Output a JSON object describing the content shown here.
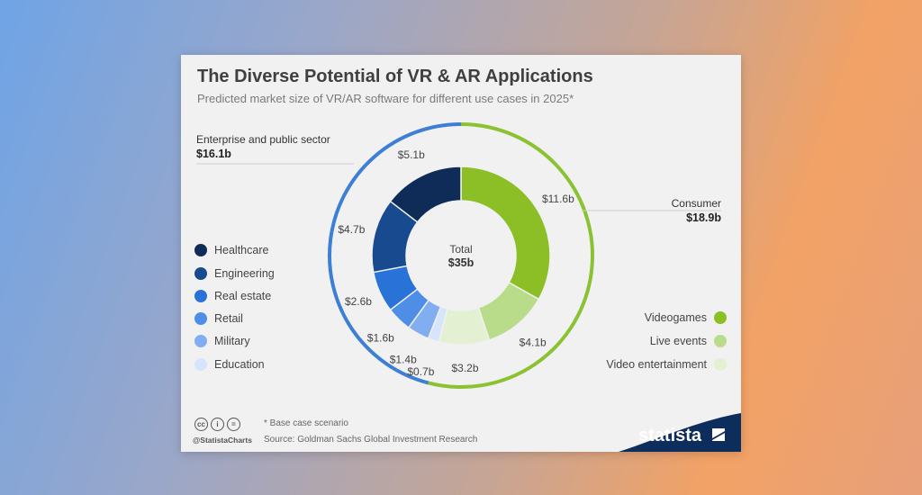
{
  "title": "The Diverse Potential of VR & AR Applications",
  "subtitle": "Predicted market size of VR/AR software for different use cases in 2025*",
  "center": {
    "label": "Total",
    "value": "$35b"
  },
  "groups": {
    "enterprise": {
      "name": "Enterprise and public sector",
      "value": "$16.1b"
    },
    "consumer": {
      "name": "Consumer",
      "value": "$18.9b"
    }
  },
  "colors": {
    "enterprise_ring": "#3d7fd4",
    "consumer_ring": "#8bc232"
  },
  "chart_data": {
    "type": "pie",
    "title": "The Diverse Potential of VR & AR Applications",
    "unit": "billion USD",
    "total": 35,
    "series": [
      {
        "name": "Videogames",
        "value": 11.6,
        "label": "$11.6b",
        "group": "Consumer",
        "color": "#8cbf26"
      },
      {
        "name": "Live events",
        "value": 4.1,
        "label": "$4.1b",
        "group": "Consumer",
        "color": "#b9dc8a"
      },
      {
        "name": "Video entertainment",
        "value": 3.2,
        "label": "$3.2b",
        "group": "Consumer",
        "color": "#e3f0d2"
      },
      {
        "name": "Education",
        "value": 0.7,
        "label": "$0.7b",
        "group": "Enterprise and public sector",
        "color": "#d6e5fb"
      },
      {
        "name": "Military",
        "value": 1.4,
        "label": "$1.4b",
        "group": "Enterprise and public sector",
        "color": "#81aef0"
      },
      {
        "name": "Retail",
        "value": 1.6,
        "label": "$1.6b",
        "group": "Enterprise and public sector",
        "color": "#4f8ee6"
      },
      {
        "name": "Real estate",
        "value": 2.6,
        "label": "$2.6b",
        "group": "Enterprise and public sector",
        "color": "#2872d8"
      },
      {
        "name": "Engineering",
        "value": 4.7,
        "label": "$4.7b",
        "group": "Enterprise and public sector",
        "color": "#174a8f"
      },
      {
        "name": "Healthcare",
        "value": 5.1,
        "label": "$5.1b",
        "group": "Enterprise and public sector",
        "color": "#0f2b58"
      }
    ]
  },
  "legend_left": [
    {
      "label": "Healthcare",
      "color": "#0f2b58"
    },
    {
      "label": "Engineering",
      "color": "#174a8f"
    },
    {
      "label": "Real estate",
      "color": "#2872d8"
    },
    {
      "label": "Retail",
      "color": "#4f8ee6"
    },
    {
      "label": "Military",
      "color": "#81aef0"
    },
    {
      "label": "Education",
      "color": "#d6e5fb"
    }
  ],
  "legend_right": [
    {
      "label": "Videogames",
      "color": "#8cbf26"
    },
    {
      "label": "Live events",
      "color": "#b9dc8a"
    },
    {
      "label": "Video entertainment",
      "color": "#e3f0d2"
    }
  ],
  "footer": {
    "note": "* Base case scenario",
    "source": "Source: Goldman Sachs Global Investment Research",
    "handle": "@StatistaCharts",
    "brand": "statista",
    "cc_icons": [
      "cc",
      "i",
      "="
    ]
  }
}
